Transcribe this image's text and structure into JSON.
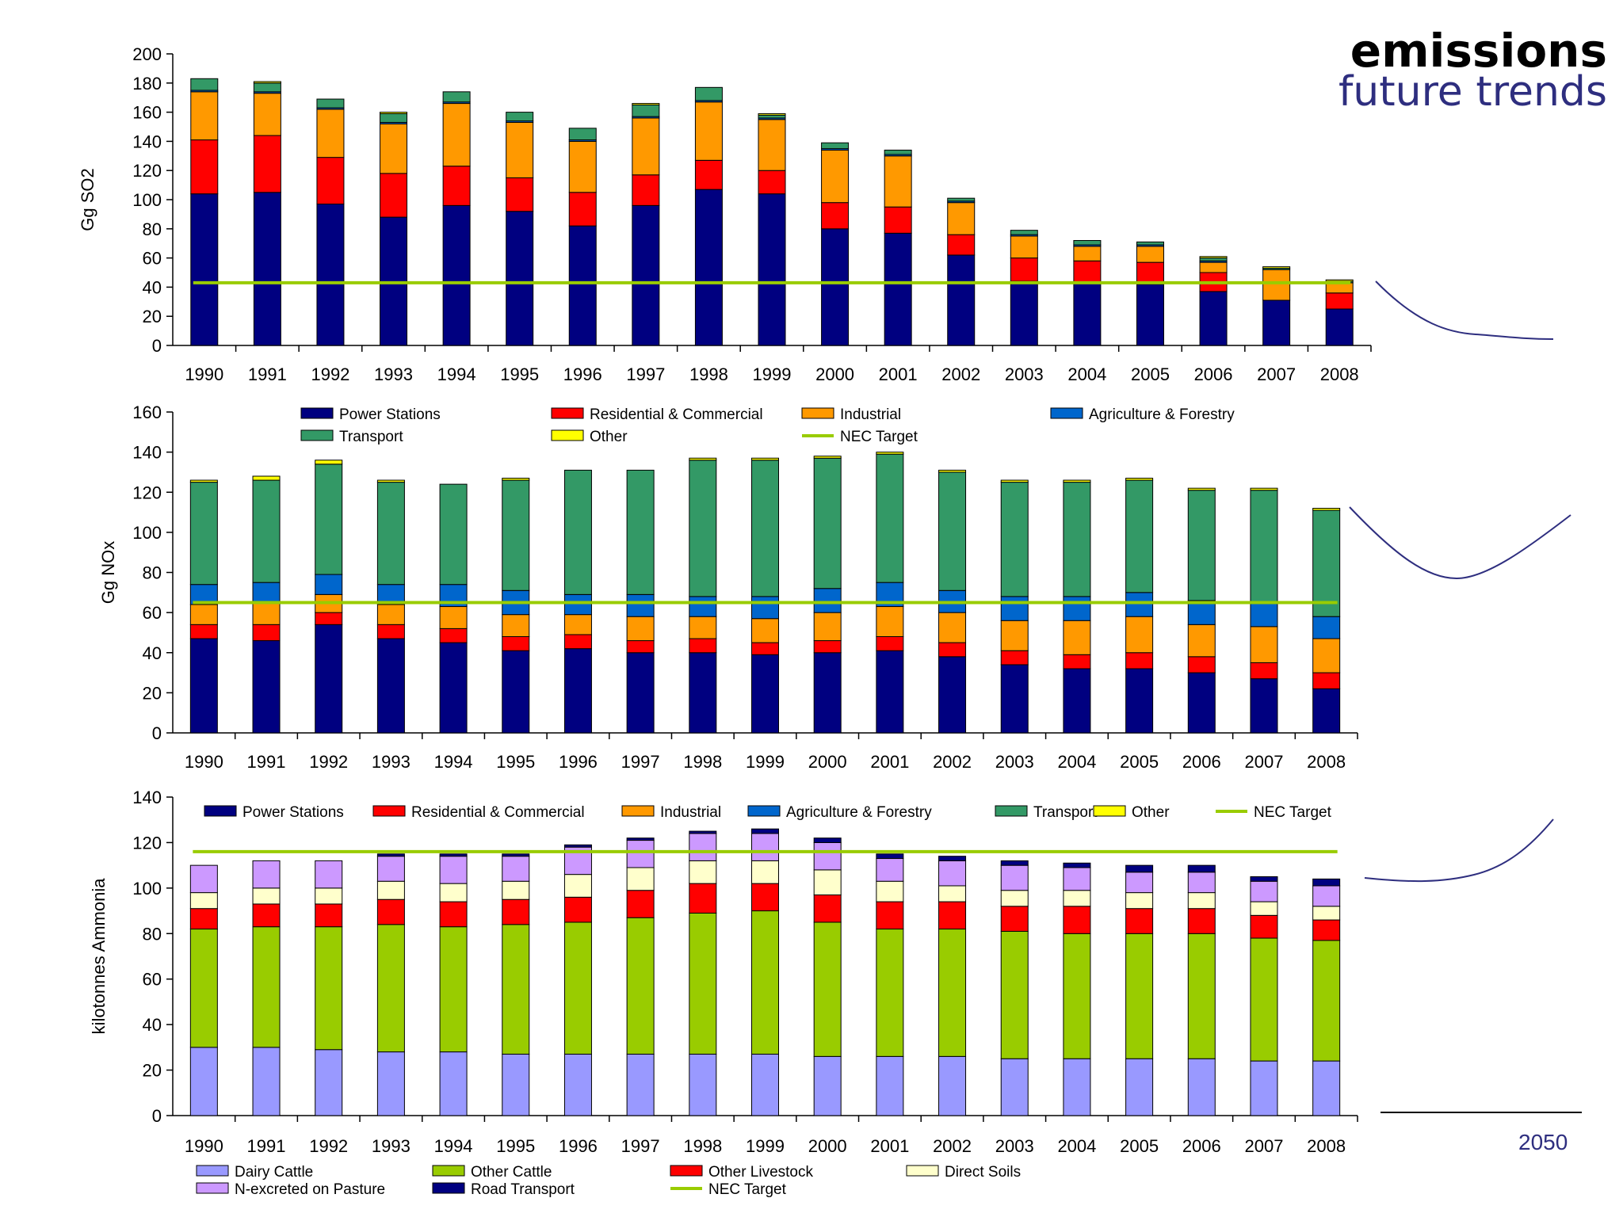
{
  "header": {
    "title": "emissions",
    "subtitle": "future trends"
  },
  "future_label": "2050",
  "colors": {
    "power": "#000080",
    "residential": "#ff0000",
    "industrial": "#ff9900",
    "agriculture": "#0066cc",
    "transport": "#339966",
    "other": "#ffff00",
    "nec": "#99cc00",
    "dairy": "#9999ff",
    "other_cattle": "#99cc00",
    "other_livestock": "#ff0000",
    "direct_soils": "#ffffcc",
    "pasture": "#cc99ff",
    "road": "#000080",
    "trend": "#2e2e7f"
  },
  "chart_data": [
    {
      "type": "bar",
      "stacked": true,
      "title": "",
      "ylabel": "Gg SO2",
      "xlabel": "",
      "ylim": [
        0,
        200
      ],
      "yticks": [
        "0",
        "20",
        "40",
        "60",
        "80",
        "100",
        "120",
        "140",
        "160",
        "180",
        "200"
      ],
      "categories": [
        "1990",
        "1991",
        "1992",
        "1993",
        "1994",
        "1995",
        "1996",
        "1997",
        "1998",
        "1999",
        "2000",
        "2001",
        "2002",
        "2003",
        "2004",
        "2005",
        "2006",
        "2007",
        "2008"
      ],
      "series": [
        {
          "name": "Power Stations",
          "color": "#000080",
          "values": [
            104,
            105,
            97,
            88,
            96,
            92,
            82,
            96,
            107,
            104,
            80,
            77,
            62,
            44,
            43,
            42,
            37,
            31,
            25
          ]
        },
        {
          "name": "Residential & Commercial",
          "color": "#ff0000",
          "values": [
            37,
            39,
            32,
            30,
            27,
            23,
            23,
            21,
            20,
            16,
            18,
            18,
            14,
            16,
            15,
            15,
            13,
            0,
            11
          ]
        },
        {
          "name": "Industrial",
          "color": "#ff9900",
          "values": [
            33,
            29,
            33,
            34,
            43,
            38,
            35,
            39,
            40,
            35,
            36,
            35,
            22,
            15,
            10,
            11,
            7,
            21,
            7
          ]
        },
        {
          "name": "Agriculture & Forestry",
          "color": "#0066cc",
          "values": [
            1,
            1,
            1,
            1,
            1,
            1,
            1,
            1,
            1,
            1,
            1,
            1,
            1,
            1,
            1,
            1,
            1,
            0,
            0
          ]
        },
        {
          "name": "Transport",
          "color": "#339966",
          "values": [
            8,
            6,
            6,
            6,
            7,
            6,
            8,
            8,
            9,
            2,
            4,
            3,
            2,
            3,
            3,
            2,
            2,
            1,
            1
          ]
        },
        {
          "name": "Other",
          "color": "#ffff00",
          "values": [
            0,
            1,
            0,
            1,
            0,
            0,
            0,
            1,
            0,
            1,
            0,
            0,
            0,
            0,
            0,
            0,
            1,
            1,
            1
          ]
        }
      ],
      "nec_target": 43,
      "future_trend": "declines from about 43 to about 5 by 2050"
    },
    {
      "type": "bar",
      "stacked": true,
      "title": "",
      "ylabel": "Gg NOx",
      "xlabel": "",
      "ylim": [
        0,
        160
      ],
      "yticks": [
        "0",
        "20",
        "40",
        "60",
        "80",
        "100",
        "120",
        "140",
        "160"
      ],
      "categories": [
        "1990",
        "1991",
        "1992",
        "1993",
        "1994",
        "1995",
        "1996",
        "1997",
        "1998",
        "1999",
        "2000",
        "2001",
        "2002",
        "2003",
        "2004",
        "2005",
        "2006",
        "2007",
        "2008"
      ],
      "legend": [
        "Power Stations",
        "Residential & Commercial",
        "Industrial",
        "Agriculture & Forestry",
        "Transport",
        "Other",
        "NEC Target"
      ],
      "series": [
        {
          "name": "Power Stations",
          "color": "#000080",
          "values": [
            47,
            46,
            54,
            47,
            45,
            41,
            42,
            40,
            40,
            39,
            40,
            41,
            38,
            34,
            32,
            32,
            30,
            27,
            22
          ]
        },
        {
          "name": "Residential & Commercial",
          "color": "#ff0000",
          "values": [
            7,
            8,
            6,
            7,
            7,
            7,
            7,
            6,
            7,
            6,
            6,
            7,
            7,
            7,
            7,
            8,
            8,
            8,
            8
          ]
        },
        {
          "name": "Industrial",
          "color": "#ff9900",
          "values": [
            10,
            11,
            9,
            10,
            11,
            11,
            10,
            12,
            11,
            12,
            14,
            15,
            15,
            15,
            17,
            18,
            16,
            18,
            17
          ]
        },
        {
          "name": "Agriculture & Forestry",
          "color": "#0066cc",
          "values": [
            10,
            10,
            10,
            10,
            11,
            12,
            10,
            11,
            10,
            11,
            12,
            12,
            11,
            12,
            12,
            12,
            12,
            12,
            11
          ]
        },
        {
          "name": "Transport",
          "color": "#339966",
          "values": [
            51,
            51,
            55,
            51,
            50,
            55,
            62,
            62,
            68,
            68,
            65,
            64,
            59,
            57,
            57,
            56,
            55,
            56,
            53
          ]
        },
        {
          "name": "Other",
          "color": "#ffff00",
          "values": [
            1,
            2,
            2,
            1,
            0,
            1,
            0,
            0,
            1,
            1,
            1,
            1,
            1,
            1,
            1,
            1,
            1,
            1,
            1
          ]
        }
      ],
      "nec_target": 65,
      "future_trend": "dips to about 75 then rises to about 108 by 2050"
    },
    {
      "type": "bar",
      "stacked": true,
      "title": "",
      "ylabel": "kilotonnes Ammonia",
      "xlabel": "",
      "ylim": [
        0,
        140
      ],
      "yticks": [
        "0",
        "20",
        "40",
        "60",
        "80",
        "100",
        "120",
        "140"
      ],
      "categories": [
        "1990",
        "1991",
        "1992",
        "1993",
        "1994",
        "1995",
        "1996",
        "1997",
        "1998",
        "1999",
        "2000",
        "2001",
        "2002",
        "2003",
        "2004",
        "2005",
        "2006",
        "2007",
        "2008"
      ],
      "legend_top": [
        "Power Stations",
        "Residential & Commercial",
        "Industrial",
        "Agriculture & Forestry",
        "Transport",
        "Other",
        "NEC Target"
      ],
      "legend_bottom": [
        "Dairy Cattle",
        "Other Cattle",
        "Other Livestock",
        "Direct Soils",
        "N-excreted on Pasture",
        "Road Transport",
        "NEC Target"
      ],
      "series": [
        {
          "name": "Dairy Cattle",
          "color": "#9999ff",
          "values": [
            30,
            30,
            29,
            28,
            28,
            27,
            27,
            27,
            27,
            27,
            26,
            26,
            26,
            25,
            25,
            25,
            25,
            24,
            24
          ]
        },
        {
          "name": "Other Cattle",
          "color": "#99cc00",
          "values": [
            52,
            53,
            54,
            56,
            55,
            57,
            58,
            60,
            62,
            63,
            59,
            56,
            56,
            56,
            55,
            55,
            55,
            54,
            53
          ]
        },
        {
          "name": "Other Livestock",
          "color": "#ff0000",
          "values": [
            9,
            10,
            10,
            11,
            11,
            11,
            11,
            12,
            13,
            12,
            12,
            12,
            12,
            11,
            12,
            11,
            11,
            10,
            9
          ]
        },
        {
          "name": "Direct Soils",
          "color": "#ffffcc",
          "values": [
            7,
            7,
            7,
            8,
            8,
            8,
            10,
            10,
            10,
            10,
            11,
            9,
            7,
            7,
            7,
            7,
            7,
            6,
            6
          ]
        },
        {
          "name": "N-excreted on Pasture",
          "color": "#cc99ff",
          "values": [
            12,
            12,
            12,
            11,
            12,
            11,
            12,
            12,
            12,
            12,
            12,
            10,
            11,
            11,
            10,
            9,
            9,
            9,
            9
          ]
        },
        {
          "name": "Road Transport",
          "color": "#000080",
          "values": [
            0,
            0,
            0,
            1,
            1,
            1,
            1,
            1,
            1,
            2,
            2,
            2,
            2,
            2,
            2,
            3,
            3,
            2,
            3
          ]
        }
      ],
      "nec_target": 116,
      "future_trend": "slight dip to about 102 then rises to about 130 by 2050"
    }
  ]
}
